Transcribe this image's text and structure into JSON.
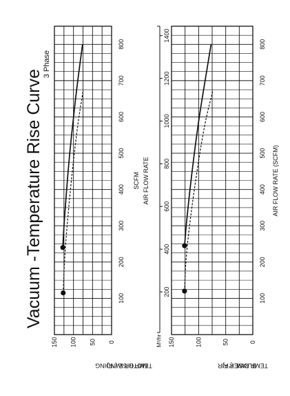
{
  "title": "Vacuum -Temperature Rise Curve",
  "subtitle": "3 Phase",
  "colors": {
    "ink": "#111111",
    "background": "#ffffff"
  },
  "chart_data": [
    {
      "type": "line",
      "x_label_lines": [
        "SCFM",
        "AIR FLOW RATE"
      ],
      "y_label_lines": [
        "MOTOR WINDING",
        "TEMP RISE (°F)"
      ],
      "x_ticks": [
        "100",
        "200",
        "300",
        "400",
        "500",
        "600",
        "700",
        "800"
      ],
      "y_ticks": [
        "150",
        "100",
        "50",
        "0"
      ],
      "x_range": [
        0,
        850
      ],
      "y_range": [
        0,
        150
      ],
      "grid": true,
      "series": [
        {
          "style": "solid",
          "x": [
            240,
            300,
            400,
            500,
            600,
            700,
            800
          ],
          "y": [
            128,
            125,
            118,
            110,
            100,
            89,
            76
          ]
        },
        {
          "style": "dashed",
          "x": [
            115,
            200,
            300,
            400,
            500,
            600,
            670
          ],
          "y": [
            127,
            124,
            117,
            108,
            98,
            86,
            75
          ]
        }
      ],
      "markers": [
        {
          "x": 240,
          "y": 128
        },
        {
          "x": 115,
          "y": 127
        }
      ]
    },
    {
      "type": "line",
      "x_label_lines": [
        "AIR FLOW RATE (SCFM)"
      ],
      "y_label_lines": [
        "BLOWER AIR",
        "TEMP RISE (°F)"
      ],
      "x_ticks": [
        "100",
        "200",
        "300",
        "400",
        "500",
        "600",
        "700",
        "800"
      ],
      "y_ticks": [
        "150",
        "100",
        "50",
        "0"
      ],
      "x_range": [
        0,
        850
      ],
      "y_range": [
        0,
        150
      ],
      "grid": true,
      "secondary_axis": {
        "unit": "M³/hr",
        "ticks": [
          "200",
          "400",
          "600",
          "800",
          "1000",
          "1200",
          "1400"
        ]
      },
      "series": [
        {
          "style": "solid",
          "x": [
            245,
            300,
            400,
            500,
            600,
            700,
            800
          ],
          "y": [
            126,
            123,
            116,
            108,
            99,
            88,
            77
          ]
        },
        {
          "style": "dashed",
          "x": [
            120,
            200,
            300,
            400,
            500,
            600,
            670
          ],
          "y": [
            126,
            124,
            117,
            108,
            98,
            86,
            74
          ]
        }
      ],
      "markers": [
        {
          "x": 245,
          "y": 126
        },
        {
          "x": 120,
          "y": 126
        }
      ]
    }
  ]
}
